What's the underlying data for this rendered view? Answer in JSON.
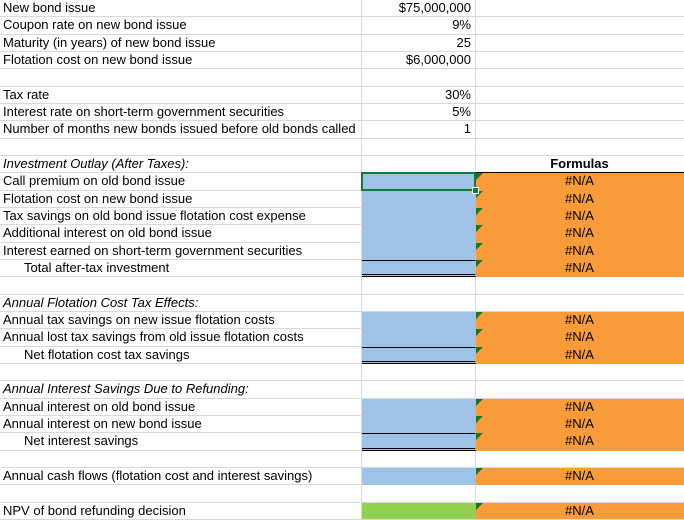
{
  "sheet": {
    "formulas_header": "Formulas",
    "colors": {
      "gridline": "#D9D9D9",
      "cell_blue": "#9DC3E6",
      "cell_green": "#92D050",
      "cell_orange": "#F89C3A",
      "selection_green": "#107C41",
      "triangle_green": "#1E7125"
    },
    "rows": [
      {
        "label": "New bond issue",
        "value": "$75,000,000"
      },
      {
        "label": "Coupon rate on new bond issue",
        "value": "9%"
      },
      {
        "label": "Maturity (in years) of new bond issue",
        "value": "25"
      },
      {
        "label": "Flotation cost on new bond issue",
        "value": "$6,000,000"
      },
      {},
      {
        "label": "Tax rate",
        "value": "30%"
      },
      {
        "label": "Interest rate on short-term government securities",
        "value": "5%"
      },
      {
        "label": "Number of months new bonds issued before old bonds called",
        "value": "1"
      },
      {},
      {
        "label": "Investment Outlay (After Taxes):",
        "italic": true,
        "formula_header": true
      },
      {
        "label": "Call premium on old bond issue",
        "fill": "blue",
        "selected": true,
        "formula": "#N/A"
      },
      {
        "label": "Flotation cost on new bond issue",
        "fill": "blue",
        "formula": "#N/A"
      },
      {
        "label": "Tax savings on old bond issue flotation cost expense",
        "fill": "blue",
        "formula": "#N/A"
      },
      {
        "label": "Additional interest on old bond issue",
        "fill": "blue",
        "formula": "#N/A"
      },
      {
        "label": "Interest earned on short-term government securities",
        "fill": "blue",
        "formula": "#N/A"
      },
      {
        "label": "Total after-tax investment",
        "indent": true,
        "fill": "blue",
        "total": true,
        "formula": "#N/A"
      },
      {},
      {
        "label": "Annual Flotation Cost Tax Effects:",
        "italic": true
      },
      {
        "label": "Annual tax savings on new issue flotation costs",
        "fill": "blue",
        "formula": "#N/A"
      },
      {
        "label": "Annual lost tax savings from old issue flotation costs",
        "fill": "blue",
        "formula": "#N/A"
      },
      {
        "label": "Net flotation cost tax savings",
        "indent": true,
        "fill": "blue",
        "total": true,
        "formula": "#N/A"
      },
      {},
      {
        "label": "Annual Interest Savings Due to Refunding:",
        "italic": true
      },
      {
        "label": "Annual interest on old bond issue",
        "fill": "blue",
        "formula": "#N/A"
      },
      {
        "label": "Annual interest on new bond issue",
        "fill": "blue",
        "formula": "#N/A"
      },
      {
        "label": "Net interest savings",
        "indent": true,
        "fill": "blue",
        "total": true,
        "formula": "#N/A"
      },
      {},
      {
        "label": "Annual cash flows (flotation cost and interest savings)",
        "fill": "blue",
        "formula": "#N/A"
      },
      {},
      {
        "label": "NPV of bond refunding decision",
        "fill": "green",
        "formula": "#N/A"
      }
    ]
  }
}
